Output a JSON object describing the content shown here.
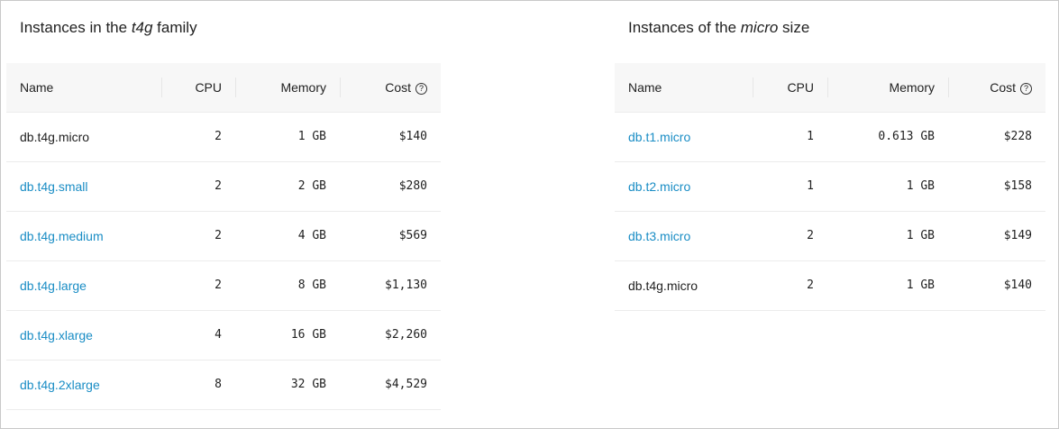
{
  "left": {
    "title_prefix": "Instances in the ",
    "title_em": "t4g",
    "title_suffix": " family",
    "columns": [
      "Name",
      "CPU",
      "Memory",
      "Cost"
    ],
    "help_icon": "?",
    "rows": [
      {
        "name": "db.t4g.micro",
        "link": false,
        "cpu": "2",
        "memory": "1 GB",
        "cost": "$140"
      },
      {
        "name": "db.t4g.small",
        "link": true,
        "cpu": "2",
        "memory": "2 GB",
        "cost": "$280"
      },
      {
        "name": "db.t4g.medium",
        "link": true,
        "cpu": "2",
        "memory": "4 GB",
        "cost": "$569"
      },
      {
        "name": "db.t4g.large",
        "link": true,
        "cpu": "2",
        "memory": "8 GB",
        "cost": "$1,130"
      },
      {
        "name": "db.t4g.xlarge",
        "link": true,
        "cpu": "4",
        "memory": "16 GB",
        "cost": "$2,260"
      },
      {
        "name": "db.t4g.2xlarge",
        "link": true,
        "cpu": "8",
        "memory": "32 GB",
        "cost": "$4,529"
      }
    ]
  },
  "right": {
    "title_prefix": "Instances of the ",
    "title_em": "micro",
    "title_suffix": " size",
    "columns": [
      "Name",
      "CPU",
      "Memory",
      "Cost"
    ],
    "help_icon": "?",
    "rows": [
      {
        "name": "db.t1.micro",
        "link": true,
        "cpu": "1",
        "memory": "0.613 GB",
        "cost": "$228"
      },
      {
        "name": "db.t2.micro",
        "link": true,
        "cpu": "1",
        "memory": "1 GB",
        "cost": "$158"
      },
      {
        "name": "db.t3.micro",
        "link": true,
        "cpu": "2",
        "memory": "1 GB",
        "cost": "$149"
      },
      {
        "name": "db.t4g.micro",
        "link": false,
        "cpu": "2",
        "memory": "1 GB",
        "cost": "$140"
      }
    ]
  },
  "colors": {
    "link": "#1a8dc5",
    "header_bg": "#f7f7f7"
  }
}
